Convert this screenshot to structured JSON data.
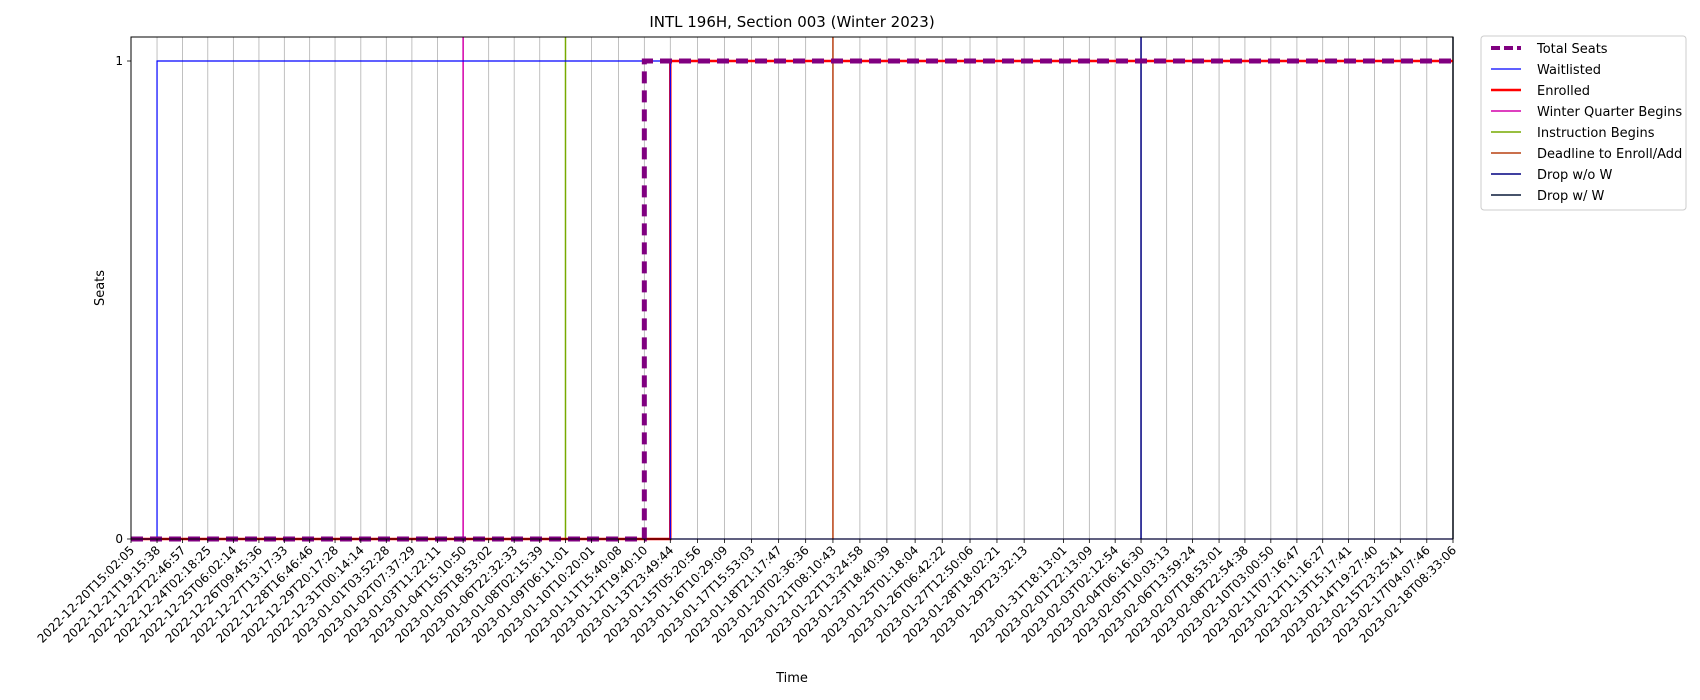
{
  "chart_data": {
    "type": "line",
    "title": "INTL 196H, Section 003 (Winter 2023)",
    "xlabel": "Time",
    "ylabel": "Seats",
    "y_ticks": [
      "0",
      "1"
    ],
    "ylim": [
      0,
      1
    ],
    "grid": "vertical",
    "legend_position": "outside-top-right",
    "x_ticks": [
      "2022-12-20T15:02:05",
      "2022-12-21T19:15:38",
      "2022-12-22T22:46:57",
      "2022-12-24T02:18:25",
      "2022-12-25T06:02:14",
      "2022-12-26T09:45:36",
      "2022-12-27T13:17:33",
      "2022-12-28T16:46:46",
      "2022-12-29T20:17:28",
      "2022-12-31T00:14:14",
      "2023-01-01T03:52:28",
      "2023-01-02T07:37:29",
      "2023-01-03T11:22:11",
      "2023-01-04T15:10:50",
      "2023-01-05T18:53:02",
      "2023-01-06T22:32:33",
      "2023-01-08T02:15:39",
      "2023-01-09T06:11:01",
      "2023-01-10T10:20:01",
      "2023-01-11T15:40:08",
      "2023-01-12T19:40:10",
      "2023-01-13T23:49:44",
      "2023-01-15T05:20:56",
      "2023-01-16T10:29:09",
      "2023-01-17T15:53:03",
      "2023-01-18T21:17:47",
      "2023-01-20T02:36:36",
      "2023-01-21T08:10:43",
      "2023-01-22T13:24:58",
      "2023-01-23T18:40:39",
      "2023-01-25T01:18:04",
      "2023-01-26T06:42:22",
      "2023-01-27T12:50:06",
      "2023-01-28T18:02:21",
      "2023-01-29T23:32:13",
      "2023-01-31T18:13:01",
      "2023-02-01T22:13:09",
      "2023-02-03T02:12:54",
      "2023-02-04T06:16:30",
      "2023-02-05T10:03:13",
      "2023-02-06T13:59:24",
      "2023-02-07T18:53:01",
      "2023-02-08T22:54:38",
      "2023-02-10T03:00:50",
      "2023-02-11T07:16:47",
      "2023-02-12T11:16:27",
      "2023-02-13T15:17:41",
      "2023-02-14T19:27:40",
      "2023-02-15T23:25:41",
      "2023-02-17T04:07:46",
      "2023-02-18T08:33:06"
    ],
    "series": [
      {
        "name": "Total Seats",
        "color": "#800080",
        "style": "dashed",
        "x": [
          "2022-12-20T15:02:05",
          "2023-01-12T19:40:10",
          "2023-01-12T19:40:10",
          "2023-02-18T08:33:06"
        ],
        "y": [
          0,
          0,
          1,
          1
        ]
      },
      {
        "name": "Waitlisted",
        "color": "#0000ff",
        "style": "solid",
        "x": [
          "2022-12-20T15:02:05",
          "2022-12-21T19:15:38",
          "2022-12-21T19:15:38",
          "2023-01-13T23:49:44",
          "2023-01-13T23:49:44",
          "2023-02-18T08:33:06"
        ],
        "y": [
          0,
          0,
          1,
          1,
          0,
          0
        ]
      },
      {
        "name": "Enrolled",
        "color": "#ff0000",
        "style": "solid",
        "x": [
          "2022-12-20T15:02:05",
          "2023-01-13T23:49:44",
          "2023-01-13T23:49:44",
          "2023-02-18T08:33:06"
        ],
        "y": [
          0,
          0,
          1,
          1
        ]
      }
    ],
    "events": [
      {
        "name": "Winter Quarter Begins",
        "color": "#d400aa",
        "x": "2023-01-04T15:10:50"
      },
      {
        "name": "Instruction Begins",
        "color": "#77aa00",
        "x": "2023-01-09T06:11:01"
      },
      {
        "name": "Deadline to Enroll/Add",
        "color": "#b84010",
        "x": "2023-01-21T08:10:43"
      },
      {
        "name": "Drop w/o W",
        "color": "#000080",
        "x": "2023-02-04T06:16:30"
      },
      {
        "name": "Drop w/ W",
        "color": "#0a1a3a",
        "x": "2023-02-18T08:33:06"
      }
    ]
  }
}
